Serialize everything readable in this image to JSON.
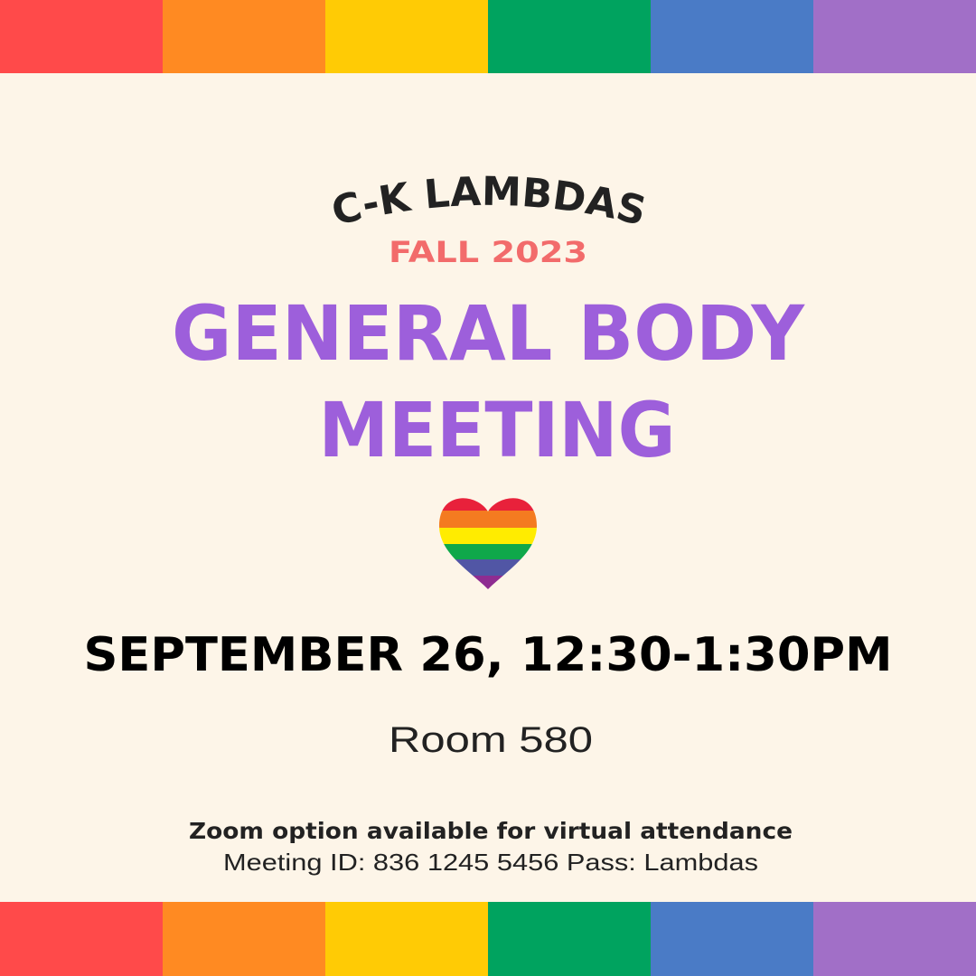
{
  "colors": {
    "background": "#FDF5E8",
    "stripes": [
      "#FF4A4A",
      "#FF8A22",
      "#FFCB05",
      "#00A35F",
      "#4A7BC6",
      "#A16FC7"
    ],
    "title": "#9D5FDB",
    "subtitle": "#F26B6B",
    "text": "#222222"
  },
  "header": {
    "org_name": "C-K LAMBDAS",
    "semester": "FALL 2023"
  },
  "title": {
    "line1": "GENERAL BODY",
    "line2": "MEETING"
  },
  "icon": "rainbow-heart-icon",
  "event": {
    "datetime": "SEPTEMBER 26, 12:30-1:30PM",
    "location": "Room 580"
  },
  "virtual": {
    "note": "Zoom option available for virtual attendance",
    "details": "Meeting ID: 836 1245 5456 Pass: Lambdas"
  }
}
